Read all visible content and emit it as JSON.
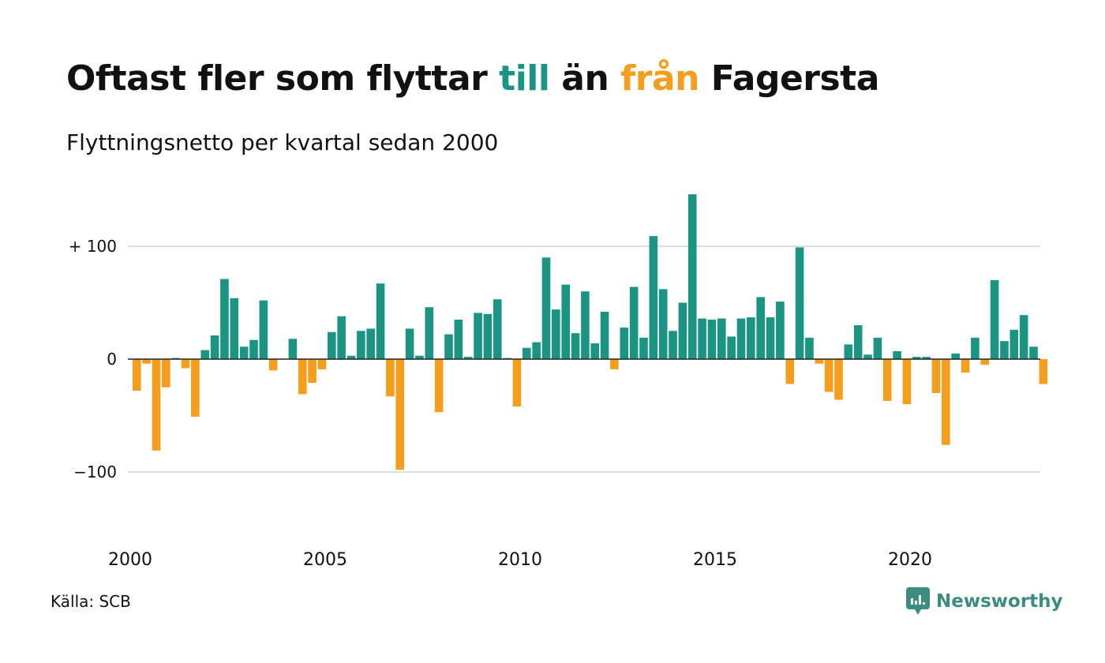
{
  "title": {
    "part1": "Oftast fler som flyttar ",
    "till": "till",
    "part2": " än ",
    "fran": "från",
    "part3": " Fagersta"
  },
  "subtitle": "Flyttningsnetto per kvartal sedan 2000",
  "source": "Källa: SCB",
  "brand": "Newsworthy",
  "colors": {
    "positive": "#1b9484",
    "negative": "#f59d1c",
    "grid": "#dddddd",
    "logo": "#3d8c82"
  },
  "chart_data": {
    "type": "bar",
    "x_start": "2000 Q1",
    "frequency": "quarterly",
    "x_ticks": [
      "2000",
      "2005",
      "2010",
      "2015",
      "2020"
    ],
    "y_ticks": [
      {
        "value": 100,
        "label": "+ 100"
      },
      {
        "value": 0,
        "label": "0"
      },
      {
        "value": -100,
        "label": "−100"
      }
    ],
    "ylim": [
      -140,
      150
    ],
    "grid": true,
    "values": [
      -28,
      -4,
      -81,
      -25,
      1,
      -8,
      -51,
      8,
      21,
      71,
      54,
      11,
      17,
      52,
      -10,
      0,
      18,
      -31,
      -21,
      -9,
      24,
      38,
      3,
      25,
      27,
      67,
      -33,
      -98,
      27,
      3,
      46,
      -47,
      22,
      35,
      2,
      41,
      40,
      53,
      1,
      -42,
      10,
      15,
      90,
      44,
      66,
      23,
      60,
      14,
      42,
      -9,
      28,
      64,
      19,
      109,
      62,
      25,
      50,
      146,
      36,
      35,
      36,
      20,
      36,
      37,
      55,
      37,
      51,
      -22,
      99,
      19,
      -4,
      -29,
      -36,
      13,
      30,
      4,
      19,
      -37,
      7,
      -40,
      2,
      2,
      -30,
      -76,
      5,
      -12,
      19,
      -5,
      70,
      16,
      26,
      39,
      11,
      -22
    ]
  }
}
